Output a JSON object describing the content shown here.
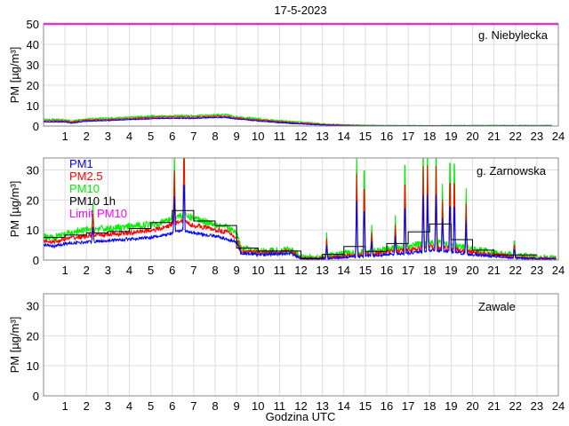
{
  "chart_data": {
    "type": "line",
    "title": "17-5-2023",
    "xlabel": "Godzina UTC",
    "xlim": [
      0,
      24
    ],
    "xticks": [
      "1",
      "2",
      "3",
      "4",
      "5",
      "6",
      "7",
      "8",
      "9",
      "10",
      "11",
      "12",
      "13",
      "14",
      "15",
      "16",
      "17",
      "18",
      "19",
      "20",
      "21",
      "22",
      "23",
      "24"
    ],
    "colors": {
      "PM1": "#0000ff",
      "PM2.5": "#ff0000",
      "PM10": "#00ee00",
      "PM10 1h": "#000000",
      "Limit PM10": "#ff00ff"
    },
    "legend": {
      "placement": "top-left",
      "entries": [
        "PM1",
        "PM2.5",
        "PM10",
        "PM10 1h",
        "Limit PM10"
      ]
    },
    "panels": [
      {
        "station": "g. Niebylecka",
        "ylabel": "PM [µg/m³]",
        "ylim": [
          0,
          50
        ],
        "yticks": [
          "0",
          "10",
          "20",
          "30",
          "40",
          "50"
        ],
        "limit_pm10": 50,
        "hours": [
          0,
          1,
          1.3,
          2,
          3,
          4,
          5,
          6,
          7,
          8,
          8.5,
          9,
          10,
          11,
          12,
          13,
          14,
          15,
          16,
          17,
          18,
          19,
          20,
          21,
          22,
          23,
          23.7
        ],
        "PM10": [
          3.2,
          3.0,
          2.5,
          3.4,
          3.8,
          4.2,
          4.8,
          5.0,
          5.0,
          5.5,
          5.5,
          4.5,
          3.5,
          2.5,
          1.8,
          1.0,
          0.6,
          0.4,
          0.3,
          0.3,
          0.2,
          0.3,
          0.3,
          0.3,
          0.3,
          0.3,
          0.3
        ],
        "PM2.5": [
          2.6,
          2.5,
          2.0,
          2.9,
          3.2,
          3.6,
          4.2,
          4.4,
          4.3,
          4.8,
          4.8,
          3.9,
          3.0,
          2.1,
          1.4,
          0.8,
          0.4,
          0.2,
          0.1,
          0.1,
          0.1,
          0.1,
          0.1,
          0.1,
          0.1,
          0.1,
          0.1
        ],
        "PM1": [
          2.0,
          2.0,
          1.4,
          2.4,
          2.7,
          3.1,
          3.6,
          3.8,
          3.7,
          4.2,
          4.2,
          3.4,
          2.5,
          1.7,
          1.0,
          0.5,
          0.2,
          0.1,
          0.1,
          0.1,
          0.1,
          0.1,
          0.1,
          0.1,
          0.1,
          0.1,
          0.1
        ],
        "noise": [
          0.8,
          0.5,
          0.4
        ],
        "spikes": []
      },
      {
        "station": "g. Zarnowska",
        "ylabel": "PM [µg/m³]",
        "ylim": [
          0,
          34
        ],
        "yticks": [
          "0",
          "10",
          "20",
          "30"
        ],
        "hours": [
          0,
          0.5,
          1,
          2,
          3,
          4,
          5,
          5.5,
          6,
          6.5,
          7,
          7.5,
          8,
          8.5,
          9,
          9.2,
          10,
          11,
          11.5,
          12,
          13,
          14,
          15,
          16,
          17,
          18,
          19,
          20,
          21,
          22,
          23,
          23.9
        ],
        "PM10": [
          8,
          7.5,
          8.5,
          10,
          10.5,
          11,
          12,
          12.5,
          14,
          15,
          14,
          13,
          12,
          11,
          9,
          4,
          3,
          3,
          3.5,
          1,
          1,
          2,
          2.5,
          3.5,
          4.5,
          6,
          5,
          3.5,
          2.5,
          1.5,
          1.0,
          0.8
        ],
        "PM2.5": [
          6.5,
          6,
          7,
          8,
          8.5,
          9,
          10,
          10.5,
          12,
          13,
          11.5,
          11,
          10,
          9.5,
          7.5,
          3,
          2.5,
          2.5,
          3,
          0.6,
          0.6,
          1.3,
          1.8,
          2.5,
          3.3,
          4.5,
          3.8,
          2.5,
          1.8,
          1.0,
          0.6,
          0.5
        ],
        "PM1": [
          5,
          4.5,
          5.5,
          6,
          6.5,
          7,
          7.5,
          8,
          9,
          10,
          9,
          8.5,
          8,
          7,
          6,
          2.3,
          1.8,
          2,
          2.3,
          0.4,
          0.4,
          0.9,
          1.2,
          1.8,
          2.3,
          3.2,
          2.8,
          1.8,
          1.3,
          0.7,
          0.4,
          0.3
        ],
        "noise": [
          2.5,
          1.6,
          1.0
        ],
        "spikes": [
          [
            2.3,
            9
          ],
          [
            6.1,
            22
          ],
          [
            6.55,
            34
          ],
          [
            13.2,
            8
          ],
          [
            14.6,
            34
          ],
          [
            14.95,
            34
          ],
          [
            15.3,
            9
          ],
          [
            16.4,
            11
          ],
          [
            16.85,
            34
          ],
          [
            17.7,
            34
          ],
          [
            17.9,
            34
          ],
          [
            18.3,
            34
          ],
          [
            18.6,
            20
          ],
          [
            18.95,
            34
          ],
          [
            19.15,
            34
          ],
          [
            19.7,
            20
          ],
          [
            21.95,
            6
          ]
        ],
        "pm10_1h": [
          7.5,
          8.3,
          9.0,
          9.5,
          10.5,
          12.5,
          16.5,
          13.0,
          11.5,
          4.0,
          3.0,
          3.0,
          0.5,
          1.9,
          4.5,
          2.9,
          5.5,
          9.4,
          12.0,
          6.8,
          3.3,
          1.7,
          1.7
        ]
      },
      {
        "station": "Zawale",
        "ylabel": "PM [µg/m³]",
        "ylim": [
          0,
          34
        ],
        "yticks": [
          "0",
          "10",
          "20",
          "30"
        ]
      }
    ]
  }
}
